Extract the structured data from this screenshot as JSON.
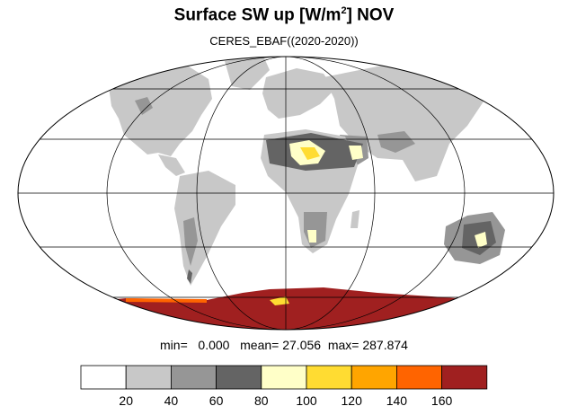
{
  "title": {
    "main_prefix": "Surface SW up [W/m",
    "superscript": "2",
    "main_suffix": "]  NOV"
  },
  "subtitle": "CERES_EBAF((2020-2020))",
  "stats": {
    "min_label": "min=",
    "min_value": "0.000",
    "mean_label": "mean=",
    "mean_value": "27.056",
    "max_label": "max=",
    "max_value": "287.874"
  },
  "colorbar": {
    "colors": [
      "#ffffff",
      "#c8c8c8",
      "#969696",
      "#646464",
      "#ffffc8",
      "#ffdc32",
      "#ffa500",
      "#ff6400",
      "#a02020"
    ],
    "tick_labels": [
      "20",
      "40",
      "60",
      "80",
      "100",
      "120",
      "140",
      "160"
    ]
  },
  "map": {
    "projection": "mollweide",
    "land_fill": "#c8c8c8",
    "ocean_fill": "#ffffff"
  }
}
